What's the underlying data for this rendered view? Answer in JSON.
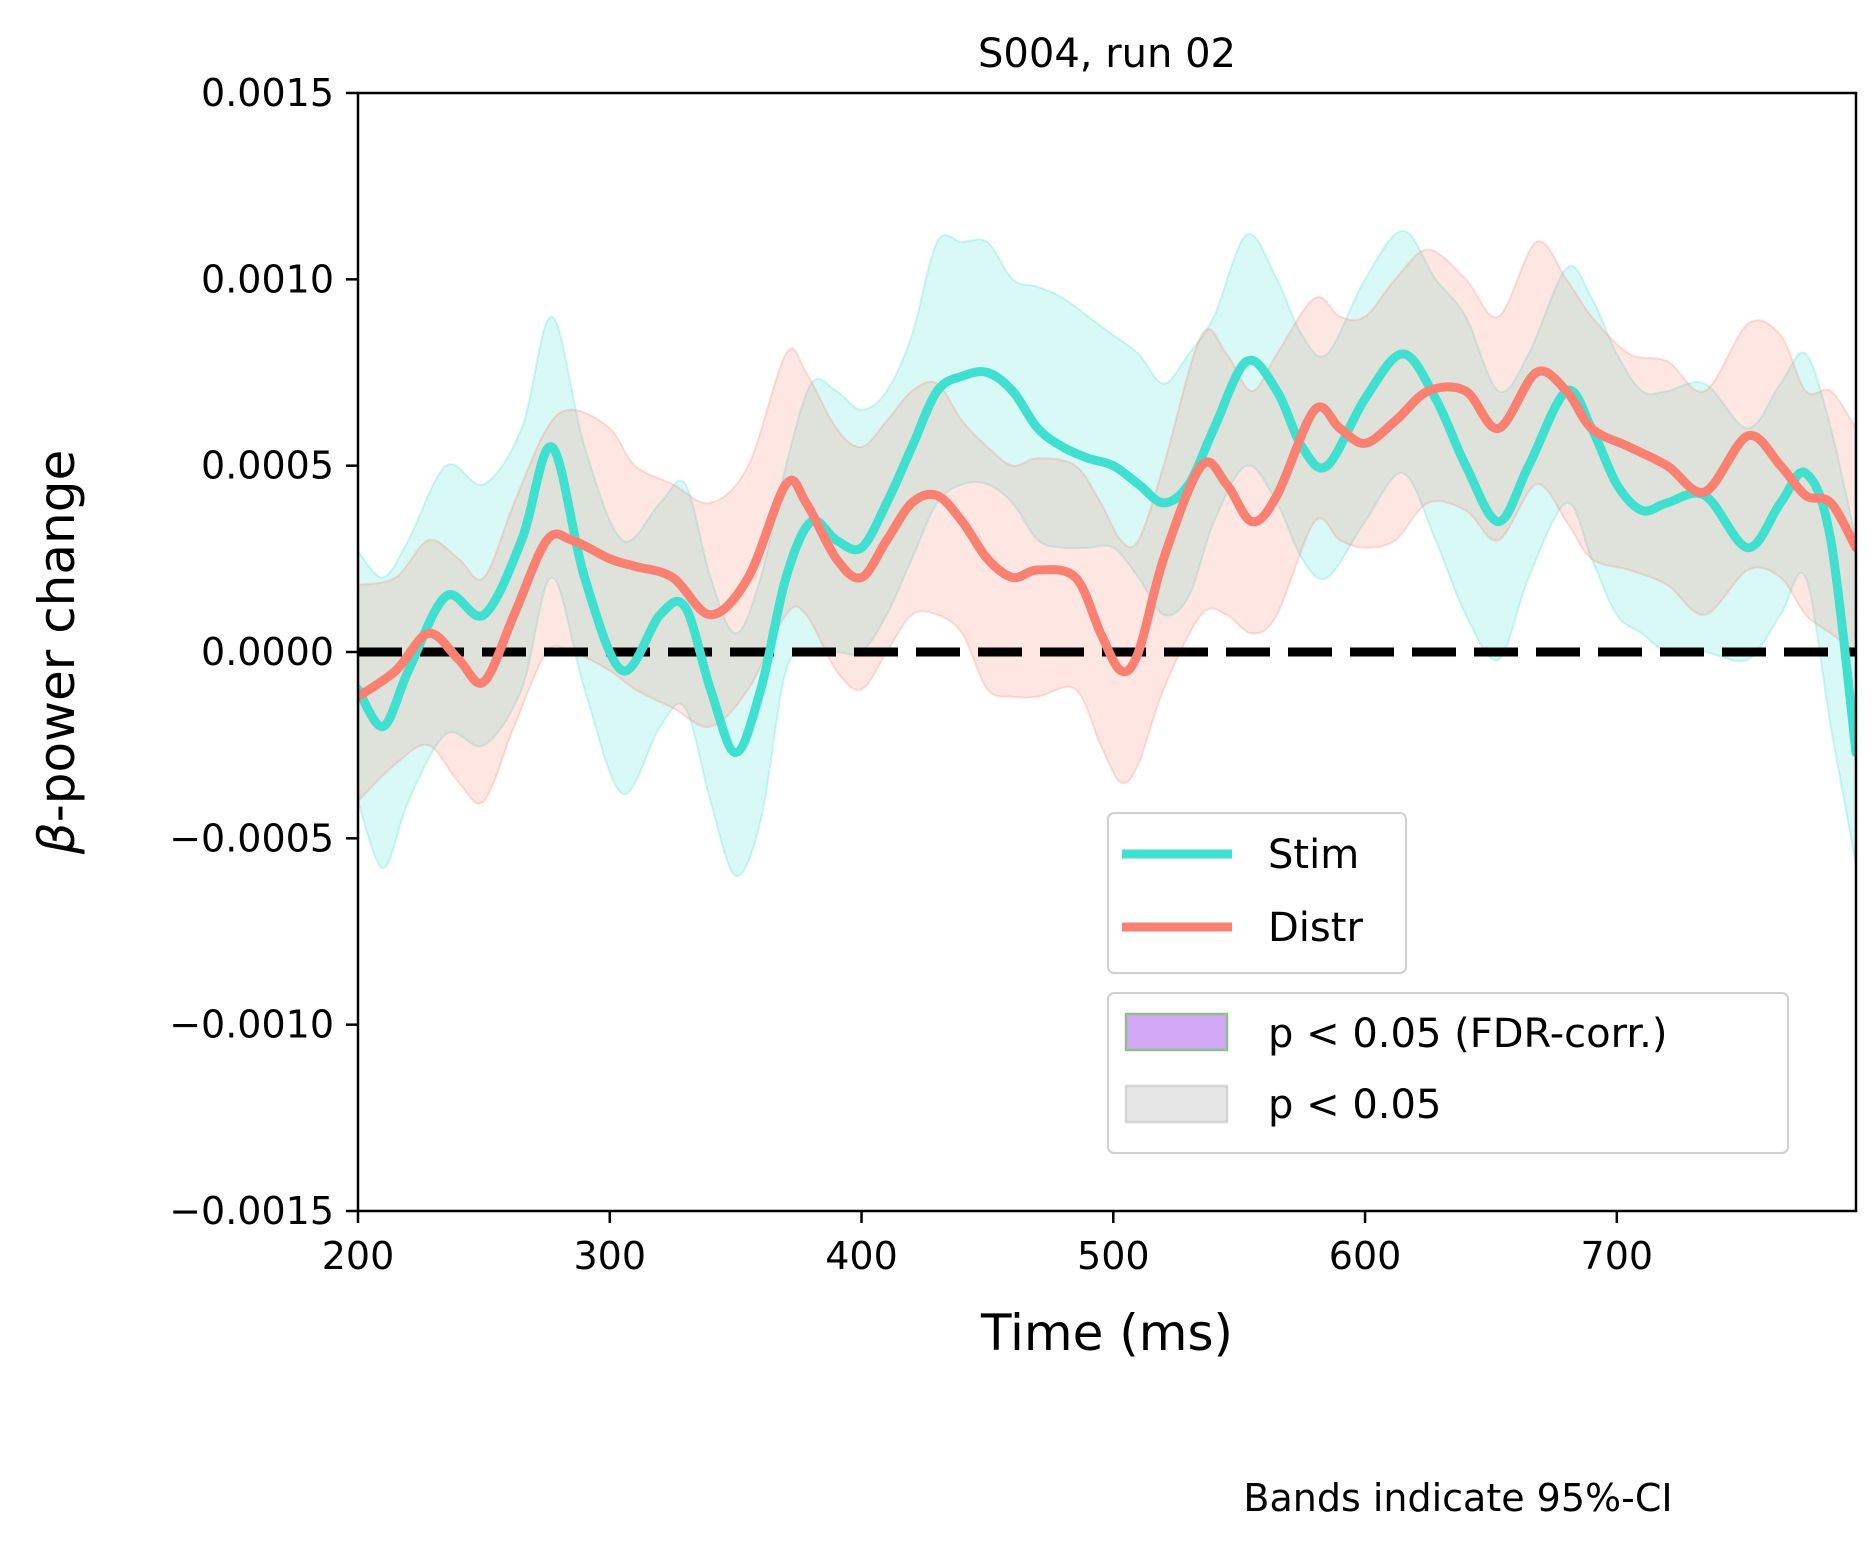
{
  "chart_data": {
    "type": "line",
    "title": "S004, run 02",
    "xlabel": "Time (ms)",
    "ylabel_symbol": "β",
    "ylabel_rest": "-power change",
    "xlim": [
      200,
      795
    ],
    "ylim": [
      -0.0015,
      0.0015
    ],
    "x_ticks": [
      200,
      300,
      400,
      500,
      600,
      700
    ],
    "x_tick_labels": [
      "200",
      "300",
      "400",
      "500",
      "600",
      "700"
    ],
    "y_ticks": [
      0.0015,
      0.001,
      0.0005,
      0,
      -0.0005,
      -0.001,
      -0.0015
    ],
    "y_tick_labels": [
      "0.0015",
      "0.0010",
      "0.0005",
      "0.0000",
      "−0.0005",
      "−0.0010",
      "−0.0015"
    ],
    "reference_line": {
      "y": 0,
      "style": "dashed",
      "color": "#000000"
    },
    "series": [
      {
        "name": "Stim",
        "color": "#40E0D0",
        "x": [
          200,
          210,
          220,
          235,
          250,
          265,
          277,
          290,
          305,
          320,
          330,
          340,
          350,
          360,
          370,
          380,
          390,
          400,
          410,
          420,
          430,
          440,
          450,
          460,
          470,
          480,
          490,
          500,
          510,
          520,
          530,
          540,
          553,
          565,
          575,
          585,
          600,
          615,
          628,
          640,
          653,
          665,
          680,
          690,
          700,
          710,
          720,
          735,
          752,
          765,
          775,
          785,
          795
        ],
        "y": [
          -0.0001,
          -0.0002,
          -5e-05,
          0.00015,
          0.0001,
          0.0003,
          0.00055,
          0.0002,
          -5e-05,
          0.0001,
          0.00012,
          -0.0001,
          -0.00027,
          -0.0001,
          0.0002,
          0.00035,
          0.0003,
          0.00028,
          0.0004,
          0.00055,
          0.0007,
          0.00074,
          0.00075,
          0.0007,
          0.0006,
          0.00055,
          0.00052,
          0.0005,
          0.00045,
          0.0004,
          0.00045,
          0.0006,
          0.00078,
          0.0007,
          0.00055,
          0.0005,
          0.00068,
          0.0008,
          0.00068,
          0.0005,
          0.00035,
          0.0005,
          0.0007,
          0.0006,
          0.00045,
          0.00038,
          0.0004,
          0.00042,
          0.00028,
          0.0004,
          0.00048,
          0.0003,
          -0.00027
        ],
        "ci_lower": [
          -0.0004,
          -0.00058,
          -0.0004,
          -0.00022,
          -0.00025,
          -0.0001,
          0.0002,
          -0.0001,
          -0.00038,
          -0.0002,
          -0.00015,
          -0.0004,
          -0.0006,
          -0.00045,
          -5e-05,
          0.0,
          0.0,
          0.0,
          0.0001,
          0.00025,
          0.0004,
          0.00045,
          0.00045,
          0.0004,
          0.0003,
          0.00028,
          0.00028,
          0.00028,
          0.0002,
          0.0001,
          0.00015,
          0.00035,
          0.0005,
          0.0004,
          0.00025,
          0.0002,
          0.00035,
          0.00048,
          0.0003,
          0.0001,
          -2e-05,
          0.0002,
          0.0004,
          0.00025,
          0.0001,
          5e-05,
          0.0,
          0.0,
          -2e-05,
          0.0001,
          0.0002,
          -0.0002,
          -0.00057
        ],
        "ci_upper": [
          0.00027,
          0.0002,
          0.0003,
          0.0005,
          0.00045,
          0.0006,
          0.0009,
          0.00055,
          0.0003,
          0.0004,
          0.00045,
          0.0002,
          5e-05,
          0.0002,
          0.0005,
          0.00072,
          0.0007,
          0.00065,
          0.0007,
          0.00085,
          0.0011,
          0.0011,
          0.0011,
          0.001,
          0.00098,
          0.00095,
          0.0009,
          0.00085,
          0.0008,
          0.00072,
          0.0008,
          0.0009,
          0.00112,
          0.001,
          0.00085,
          0.0008,
          0.001,
          0.00113,
          0.001,
          0.0009,
          0.0007,
          0.0008,
          0.00103,
          0.00095,
          0.0008,
          0.0007,
          0.0007,
          0.00072,
          0.0006,
          0.00072,
          0.0008,
          0.0006,
          0.0003
        ]
      },
      {
        "name": "Distr",
        "color": "#FA8072",
        "x": [
          200,
          215,
          228,
          240,
          250,
          262,
          275,
          285,
          300,
          310,
          325,
          340,
          355,
          370,
          378,
          390,
          400,
          410,
          420,
          430,
          440,
          450,
          460,
          470,
          485,
          495,
          503,
          510,
          520,
          535,
          545,
          555,
          565,
          580,
          590,
          600,
          612,
          625,
          640,
          653,
          668,
          680,
          690,
          705,
          720,
          735,
          752,
          765,
          775,
          785,
          795
        ],
        "y": [
          -0.00012,
          -5e-05,
          5e-05,
          -2e-05,
          -8e-05,
          0.0001,
          0.0003,
          0.0003,
          0.00025,
          0.00023,
          0.0002,
          0.0001,
          0.0002,
          0.00045,
          0.0004,
          0.00025,
          0.0002,
          0.0003,
          0.0004,
          0.00042,
          0.00035,
          0.00025,
          0.0002,
          0.00022,
          0.0002,
          5e-05,
          -5e-05,
          0.0,
          0.00025,
          0.0005,
          0.00045,
          0.00035,
          0.00042,
          0.00065,
          0.0006,
          0.00056,
          0.00062,
          0.0007,
          0.0007,
          0.0006,
          0.00075,
          0.0007,
          0.0006,
          0.00055,
          0.0005,
          0.00043,
          0.00058,
          0.0005,
          0.00042,
          0.0004,
          0.00028
        ],
        "ci_lower": [
          -0.0004,
          -0.0003,
          -0.00025,
          -0.00035,
          -0.0004,
          -0.0002,
          0.0,
          0.0,
          -5e-05,
          -0.0001,
          -0.00015,
          -0.0002,
          -0.0001,
          0.0001,
          0.0001,
          -5e-05,
          -0.0001,
          0.0,
          0.0001,
          0.0001,
          5e-05,
          -0.0001,
          -0.00012,
          -0.00012,
          -0.0001,
          -0.00025,
          -0.00035,
          -0.0003,
          -0.0001,
          0.0001,
          0.0001,
          5e-05,
          0.0001,
          0.00035,
          0.0003,
          0.00028,
          0.0003,
          0.0004,
          0.00038,
          0.0003,
          0.00045,
          0.00035,
          0.00025,
          0.00022,
          0.00018,
          0.0001,
          0.00022,
          0.0002,
          0.0001,
          5e-05,
          0.0
        ],
        "ci_upper": [
          0.00018,
          0.0002,
          0.0003,
          0.00025,
          0.0002,
          0.0004,
          0.0006,
          0.00065,
          0.0006,
          0.0005,
          0.00045,
          0.0004,
          0.0005,
          0.0008,
          0.00075,
          0.0006,
          0.00055,
          0.00062,
          0.0007,
          0.00072,
          0.00062,
          0.00055,
          0.0005,
          0.00052,
          0.0005,
          0.0004,
          0.0003,
          0.0003,
          0.0005,
          0.00085,
          0.0008,
          0.0007,
          0.0008,
          0.00095,
          0.0009,
          0.0009,
          0.001,
          0.00108,
          0.001,
          0.0009,
          0.0011,
          0.001,
          0.0009,
          0.0008,
          0.00078,
          0.0007,
          0.00088,
          0.00085,
          0.0007,
          0.0007,
          0.0006
        ]
      }
    ],
    "legend_lines": [
      {
        "label": "Stim",
        "color": "#40E0D0"
      },
      {
        "label": "Distr",
        "color": "#FA8072"
      }
    ],
    "legend_patches": [
      {
        "label": "p < 0.05 (FDR-corr.)",
        "fill": "#D2A8F5",
        "edge": "#8FBF8F"
      },
      {
        "label": "p < 0.05",
        "fill": "#E6E6E6",
        "edge": "#D5D5D5"
      }
    ],
    "legend_placement": "lower-right",
    "grid": false,
    "footnote": "Bands indicate 95%-CI"
  }
}
